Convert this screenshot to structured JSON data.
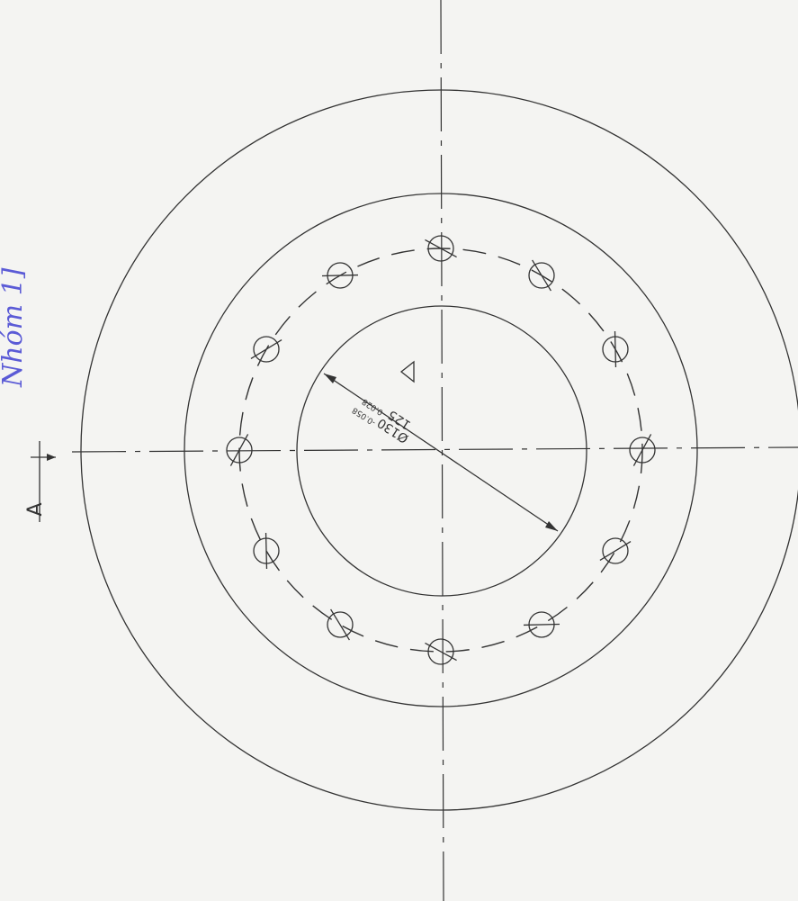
{
  "labels": {
    "note": "Nhóm 1]",
    "section": "A",
    "dimension_main": "Ø130",
    "tolerance_main": "-0.058",
    "dimension_second": "125",
    "tolerance_second": "-0.028"
  }
}
